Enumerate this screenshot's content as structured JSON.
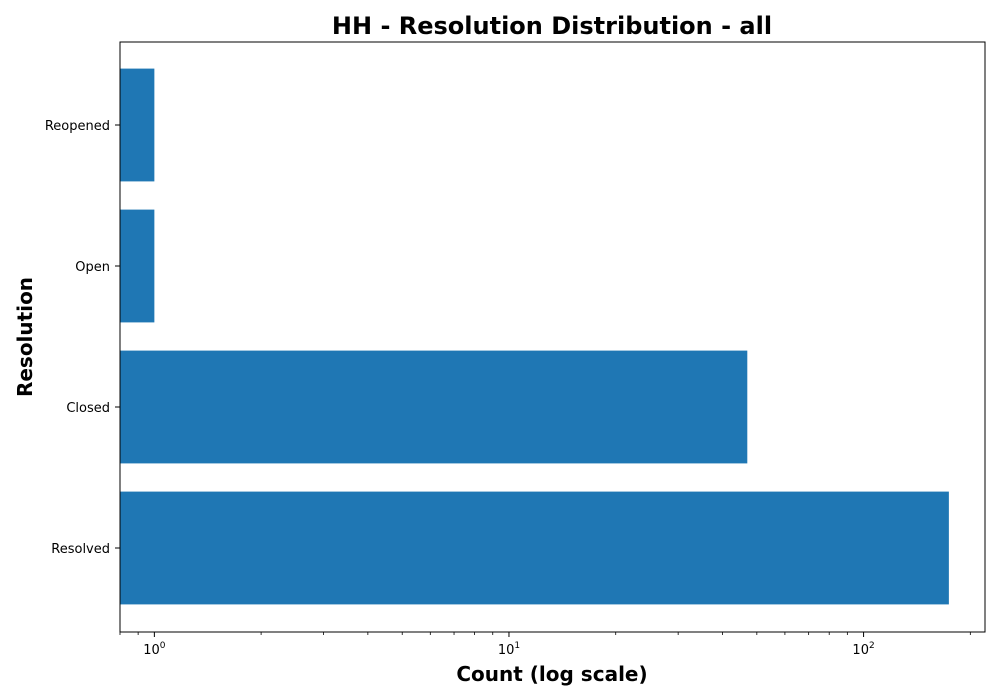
{
  "chart_data": {
    "type": "bar",
    "orientation": "horizontal",
    "title": "HH - Resolution Distribution - all",
    "xlabel": "Count (log scale)",
    "ylabel": "Resolution",
    "x_scale": "log",
    "xlim": [
      0.8,
      220
    ],
    "x_ticks": [
      {
        "value": 1,
        "base": "10",
        "exp": "0"
      },
      {
        "value": 10,
        "base": "10",
        "exp": "1"
      },
      {
        "value": 100,
        "base": "10",
        "exp": "2"
      }
    ],
    "categories": [
      "Resolved",
      "Closed",
      "Open",
      "Reopened"
    ],
    "values": [
      174,
      47,
      1,
      1
    ],
    "bar_color": "#1f77b4",
    "grid": false,
    "legend": "none"
  }
}
